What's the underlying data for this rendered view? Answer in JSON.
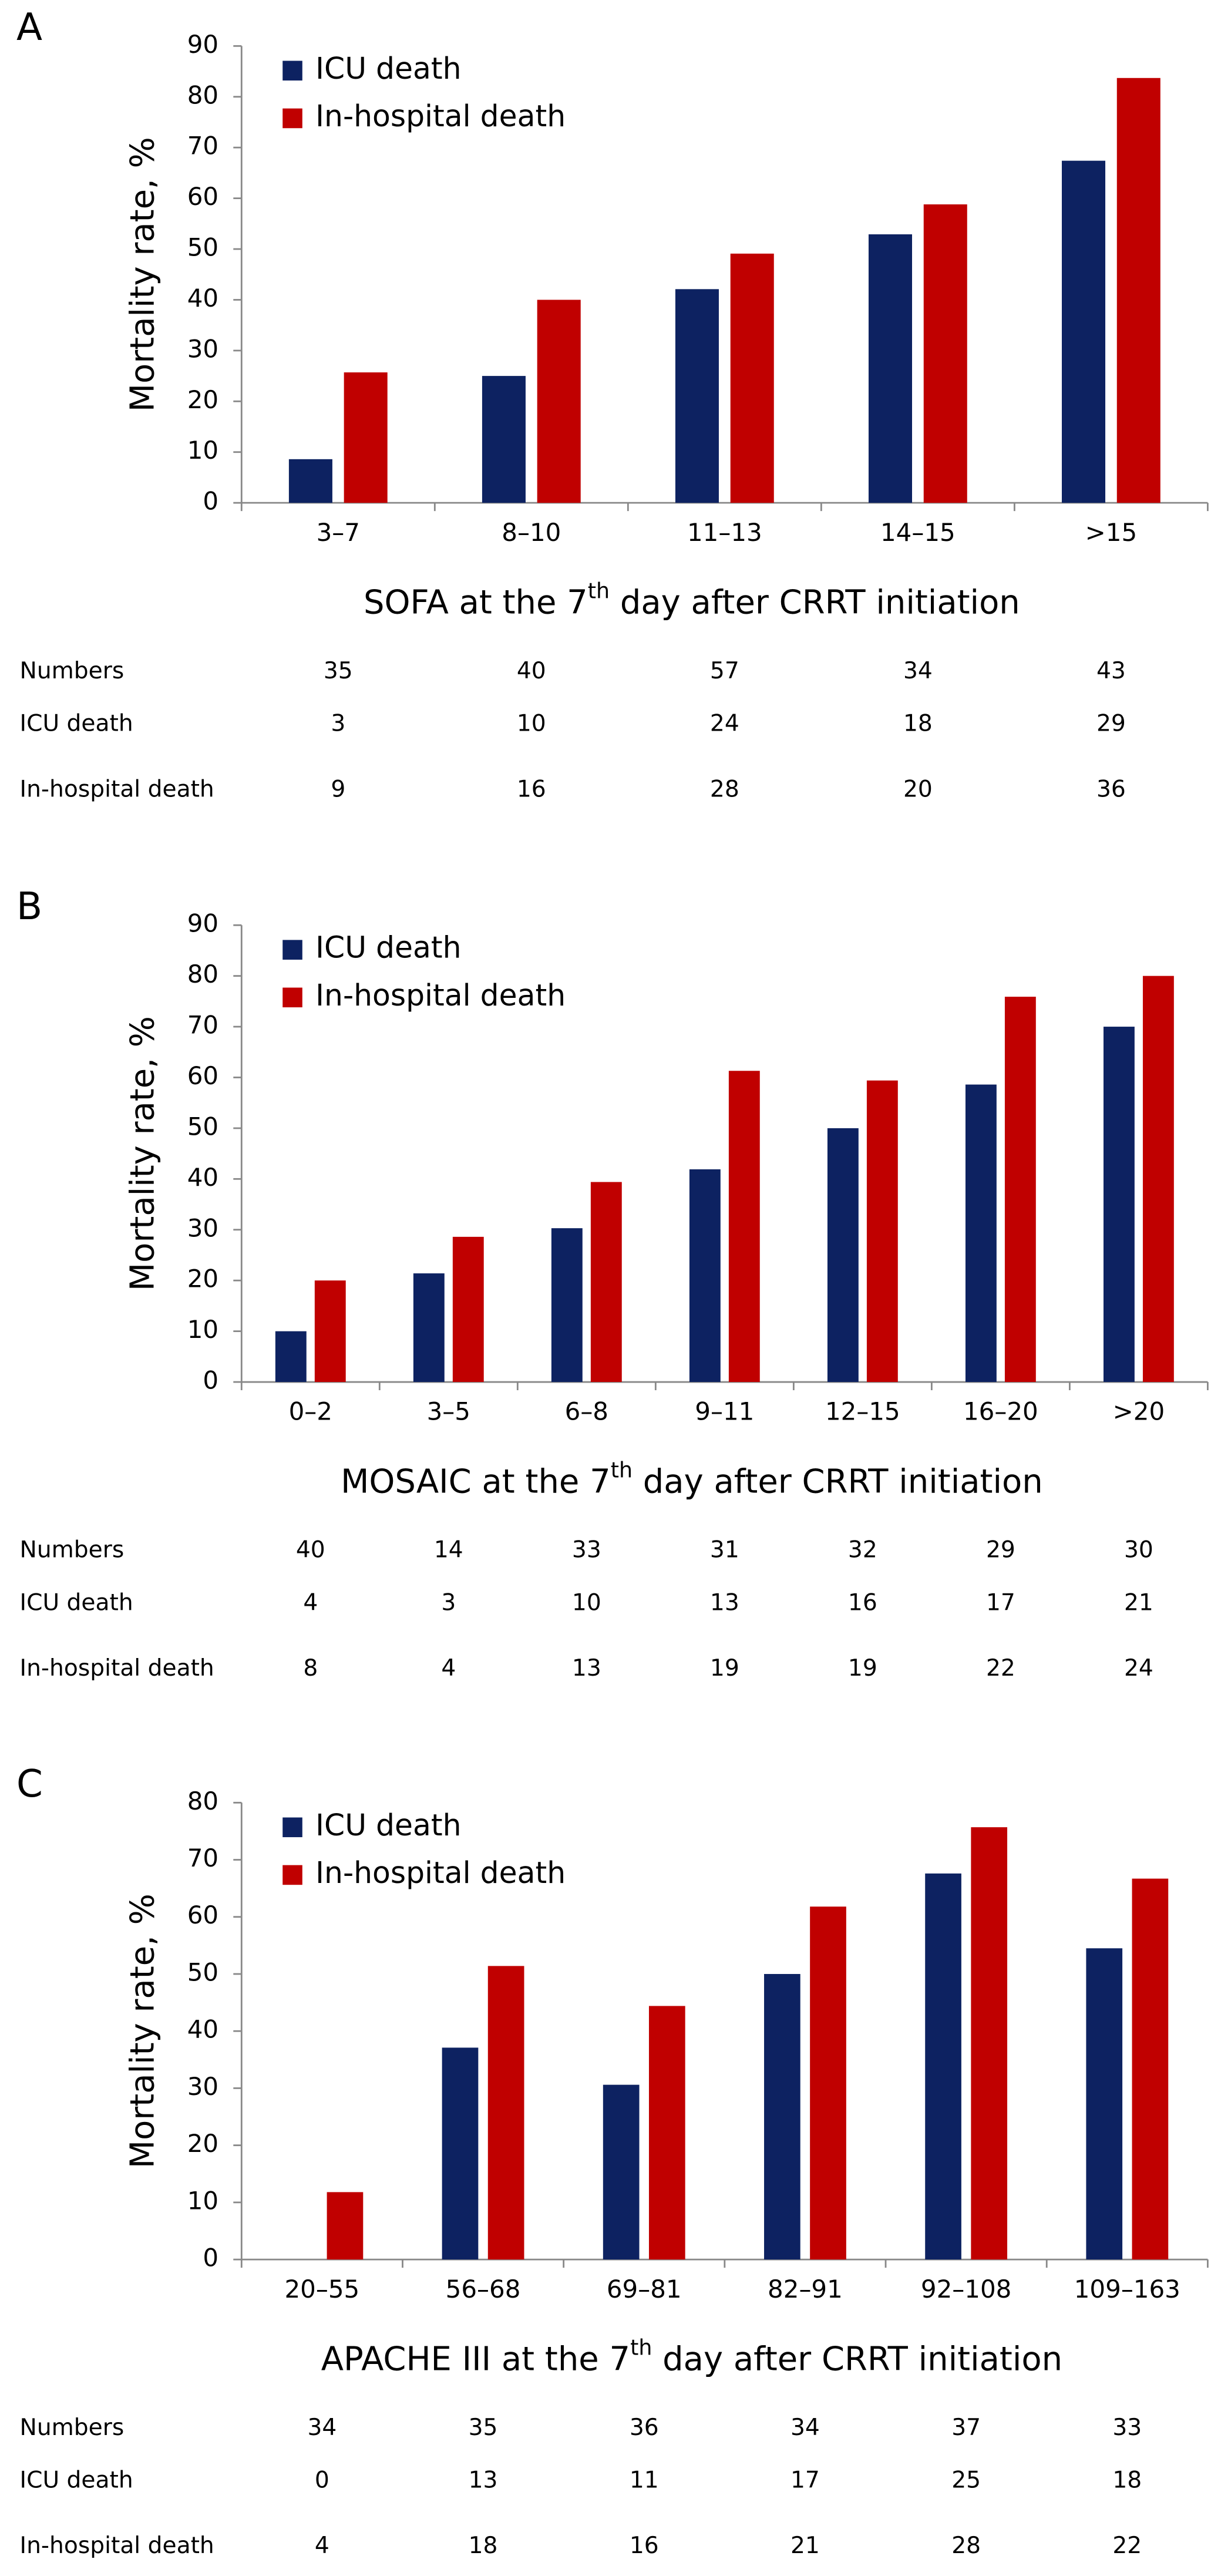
{
  "chart_data": [
    {
      "type": "bar",
      "panel_label": "A",
      "categories": [
        "3–7",
        "8–10",
        "11–13",
        "14–15",
        ">15"
      ],
      "series": [
        {
          "name": "ICU death",
          "color": "#0d2261",
          "values": [
            8.6,
            25,
            42.1,
            52.9,
            67.4
          ]
        },
        {
          "name": "In-hospital death",
          "color": "#c00000",
          "values": [
            25.7,
            40,
            49.1,
            58.8,
            83.7
          ]
        }
      ],
      "y_label": "Mortality rate, %",
      "x_label": [
        "SOFA at the 7",
        "th",
        " day after CRRT initiation"
      ],
      "ylim": [
        0,
        90
      ],
      "yticks": [
        0,
        10,
        20,
        30,
        40,
        50,
        60,
        70,
        80,
        90
      ],
      "legend": "upper left",
      "table": {
        "rows": [
          {
            "label": "Numbers",
            "values": [
              35,
              40,
              57,
              34,
              43
            ]
          },
          {
            "label": "ICU death",
            "values": [
              3,
              10,
              24,
              18,
              29
            ]
          },
          {
            "label": "In-hospital death",
            "values": [
              9,
              16,
              28,
              20,
              36
            ]
          }
        ]
      }
    },
    {
      "type": "bar",
      "panel_label": "B",
      "categories": [
        "0–2",
        "3–5",
        "6–8",
        "9–11",
        "12–15",
        "16–20",
        ">20"
      ],
      "series": [
        {
          "name": "ICU death",
          "color": "#0d2261",
          "values": [
            10,
            21.4,
            30.3,
            41.9,
            50,
            58.6,
            70
          ]
        },
        {
          "name": "In-hospital death",
          "color": "#c00000",
          "values": [
            20,
            28.6,
            39.4,
            61.3,
            59.4,
            75.9,
            80
          ]
        }
      ],
      "y_label": "Mortality rate, %",
      "x_label": [
        "MOSAIC at the 7",
        "th",
        " day after CRRT initiation"
      ],
      "ylim": [
        0,
        90
      ],
      "yticks": [
        0,
        10,
        20,
        30,
        40,
        50,
        60,
        70,
        80,
        90
      ],
      "legend": "upper left",
      "table": {
        "rows": [
          {
            "label": "Numbers",
            "values": [
              40,
              14,
              33,
              31,
              32,
              29,
              30
            ]
          },
          {
            "label": "ICU death",
            "values": [
              4,
              3,
              10,
              13,
              16,
              17,
              21
            ]
          },
          {
            "label": "In-hospital death",
            "values": [
              8,
              4,
              13,
              19,
              19,
              22,
              24
            ]
          }
        ]
      }
    },
    {
      "type": "bar",
      "panel_label": "C",
      "categories": [
        "20–55",
        "56–68",
        "69–81",
        "82–91",
        "92–108",
        "109–163"
      ],
      "series": [
        {
          "name": "ICU death",
          "color": "#0d2261",
          "values": [
            0,
            37.1,
            30.6,
            50,
            67.6,
            54.5
          ]
        },
        {
          "name": "In-hospital death",
          "color": "#c00000",
          "values": [
            11.8,
            51.4,
            44.4,
            61.8,
            75.7,
            66.7
          ]
        }
      ],
      "y_label": "Mortality rate, %",
      "x_label": [
        "APACHE III at the 7",
        "th",
        " day after CRRT initiation"
      ],
      "ylim": [
        0,
        80
      ],
      "yticks": [
        0,
        10,
        20,
        30,
        40,
        50,
        60,
        70,
        80
      ],
      "legend": "upper left",
      "table": {
        "rows": [
          {
            "label": "Numbers",
            "values": [
              34,
              35,
              36,
              34,
              37,
              33
            ]
          },
          {
            "label": "ICU death",
            "values": [
              0,
              13,
              11,
              17,
              25,
              18
            ]
          },
          {
            "label": "In-hospital death",
            "values": [
              4,
              18,
              16,
              21,
              28,
              22
            ]
          }
        ]
      }
    }
  ]
}
